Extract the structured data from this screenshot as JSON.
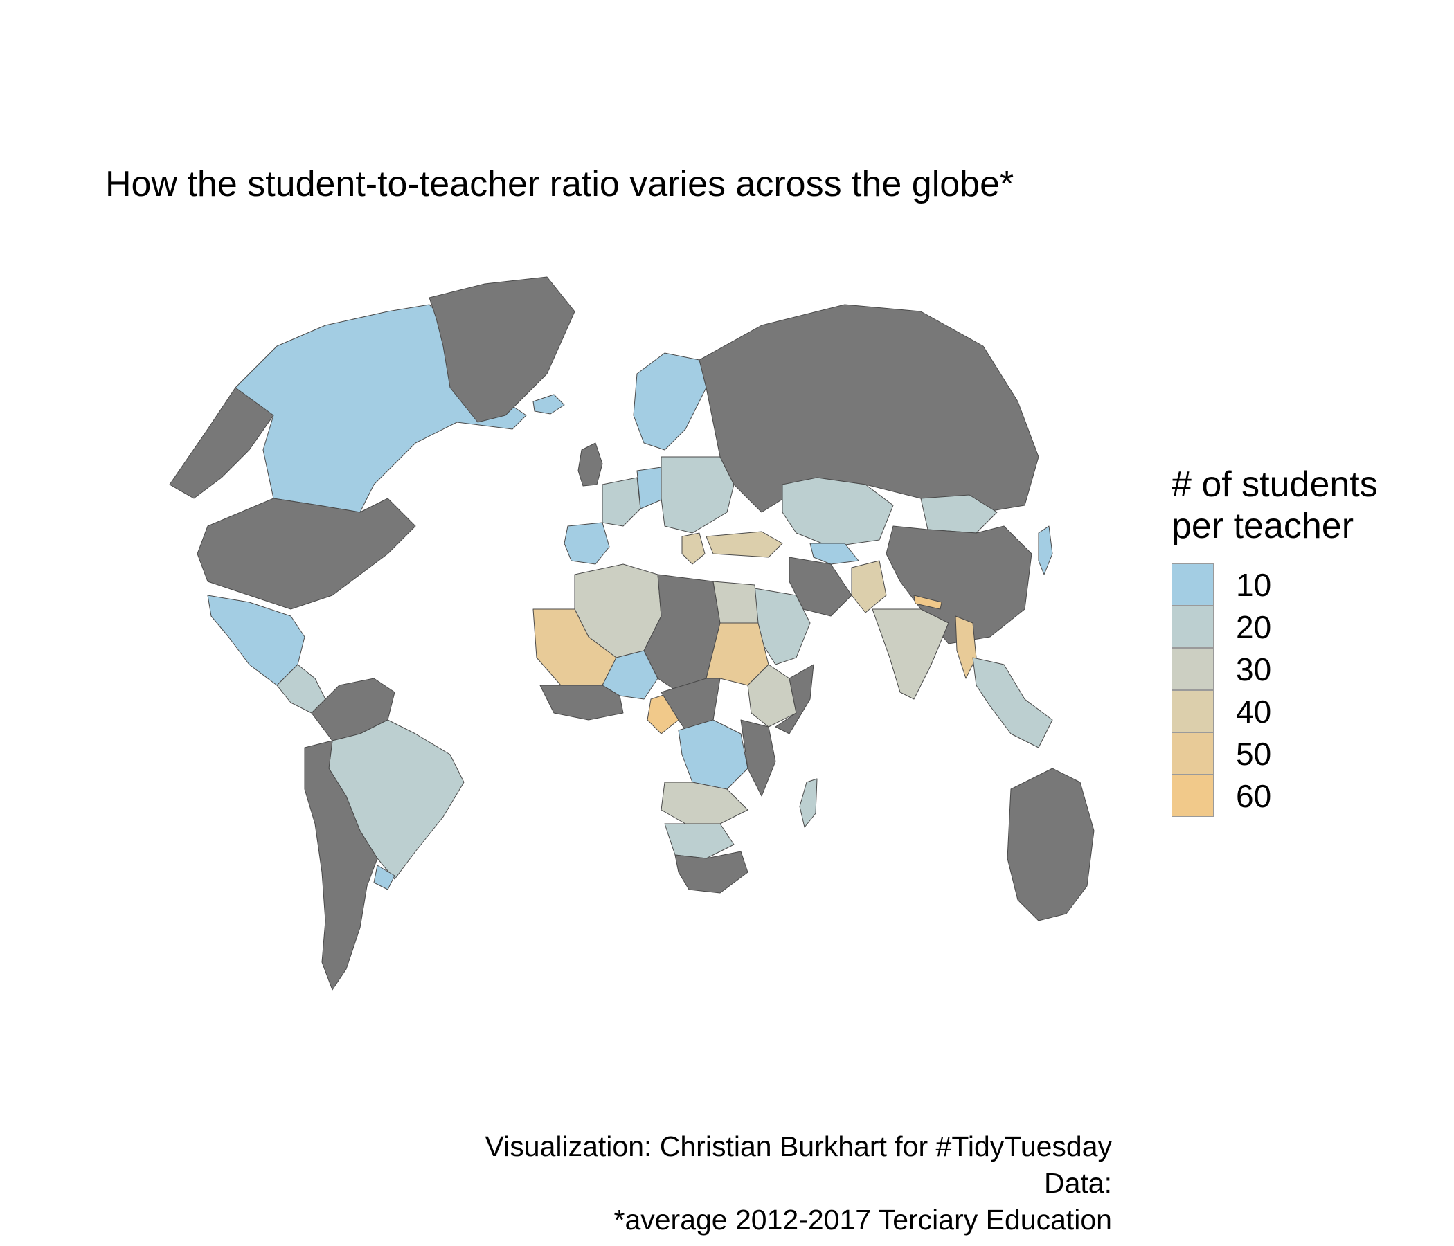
{
  "title": "How the student-to-teacher ratio varies across the globe*",
  "legend": {
    "title_line1": "# of students",
    "title_line2": "per teacher",
    "items": [
      {
        "label": "10",
        "color": "#a3cde3"
      },
      {
        "label": "20",
        "color": "#bccfd0"
      },
      {
        "label": "30",
        "color": "#cccfc2"
      },
      {
        "label": "40",
        "color": "#dccfac"
      },
      {
        "label": "50",
        "color": "#e8cb98"
      },
      {
        "label": "60",
        "color": "#f1c98a"
      }
    ]
  },
  "caption": {
    "line1": "Visualization: Christian Burkhart for #TidyTuesday",
    "line2": "Data:",
    "line3": "*average 2012-2017 Terciary Education"
  },
  "colors": {
    "no_data": "#787878",
    "border": "#4a4a4a",
    "background": "#ffffff"
  },
  "map_data": {
    "projection": "orthographic-style globe",
    "variable": "# of students per teacher",
    "countries": [
      {
        "id": "canada",
        "bin": 10
      },
      {
        "id": "alaska",
        "bin": "no-data"
      },
      {
        "id": "usa",
        "bin": "no-data"
      },
      {
        "id": "greenland",
        "bin": "no-data"
      },
      {
        "id": "mexico",
        "bin": 10
      },
      {
        "id": "central-america",
        "bin": 20
      },
      {
        "id": "colombia-venezuela-guianas",
        "bin": "no-data"
      },
      {
        "id": "brazil",
        "bin": 20
      },
      {
        "id": "peru-bolivia-chile-argentina",
        "bin": "no-data"
      },
      {
        "id": "uruguay",
        "bin": 10
      },
      {
        "id": "iceland",
        "bin": 10
      },
      {
        "id": "scandinavia",
        "bin": 10
      },
      {
        "id": "uk-ireland",
        "bin": "no-data"
      },
      {
        "id": "iberia",
        "bin": 10
      },
      {
        "id": "western-europe",
        "bin": 20
      },
      {
        "id": "germany",
        "bin": 10
      },
      {
        "id": "eastern-europe",
        "bin": 20
      },
      {
        "id": "greece",
        "bin": 40
      },
      {
        "id": "turkey",
        "bin": 40
      },
      {
        "id": "russia",
        "bin": "no-data"
      },
      {
        "id": "kazakhstan",
        "bin": 20
      },
      {
        "id": "mongolia",
        "bin": 20
      },
      {
        "id": "china",
        "bin": "no-data"
      },
      {
        "id": "turkmenistan",
        "bin": 10
      },
      {
        "id": "iran",
        "bin": "no-data"
      },
      {
        "id": "saudi-arabia",
        "bin": 20
      },
      {
        "id": "pakistan",
        "bin": 40
      },
      {
        "id": "india",
        "bin": 30
      },
      {
        "id": "nepal",
        "bin": 60
      },
      {
        "id": "myanmar",
        "bin": 50
      },
      {
        "id": "southeast-asia",
        "bin": 20
      },
      {
        "id": "japan",
        "bin": 10
      },
      {
        "id": "australia",
        "bin": "no-data"
      },
      {
        "id": "algeria",
        "bin": 30
      },
      {
        "id": "mauritania-mali",
        "bin": 50
      },
      {
        "id": "libya-chad",
        "bin": "no-data"
      },
      {
        "id": "niger",
        "bin": 10
      },
      {
        "id": "egypt",
        "bin": 30
      },
      {
        "id": "sudan",
        "bin": 50
      },
      {
        "id": "ethiopia",
        "bin": 30
      },
      {
        "id": "somalia",
        "bin": "no-data"
      },
      {
        "id": "cameroon",
        "bin": 60
      },
      {
        "id": "dr-congo",
        "bin": 10
      },
      {
        "id": "angola-zambia",
        "bin": 30
      },
      {
        "id": "namibia-botswana",
        "bin": 20
      },
      {
        "id": "south-africa",
        "bin": "no-data"
      },
      {
        "id": "madagascar",
        "bin": 20
      }
    ]
  }
}
